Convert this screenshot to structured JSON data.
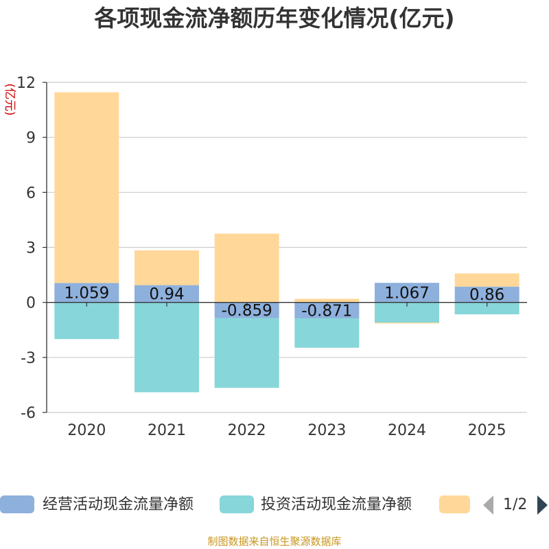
{
  "chart_data": {
    "type": "bar",
    "stacked": true,
    "title": "各项现金流净额历年变化情况(亿元)",
    "ylabel": "(亿元)",
    "categories": [
      "2020",
      "2021",
      "2022",
      "2023",
      "2024",
      "2025"
    ],
    "ylim": [
      -6,
      12
    ],
    "yticks": [
      -6,
      -3,
      0,
      3,
      6,
      9,
      12
    ],
    "ytick_labels": [
      "-6",
      "-3",
      "0",
      "3",
      "6",
      "9",
      "12"
    ],
    "series": [
      {
        "name": "经营活动现金流量净额",
        "color": "#8eb0dc",
        "values": [
          1.059,
          0.94,
          -0.859,
          -0.871,
          1.067,
          0.86
        ],
        "labels": [
          "1.059",
          "0.94",
          "-0.859",
          "-0.871",
          "1.067",
          "0.86"
        ]
      },
      {
        "name": "投资活动现金流量净额",
        "color": "#87d6d9",
        "values": [
          -2.0,
          -4.9,
          -3.8,
          -1.6,
          -1.1,
          -0.65
        ]
      },
      {
        "name": "",
        "color": "#ffd899",
        "values": [
          10.4,
          1.9,
          3.75,
          0.2,
          -0.05,
          0.72
        ]
      }
    ],
    "legend": {
      "position": "bottom",
      "page": "1/2"
    },
    "source": "制图数据来自恒生聚源数据库",
    "colors": {
      "title": "#333333",
      "axis": "#333333",
      "grid": "#cccccc",
      "unit": "#cc0000",
      "source": "#c8961e",
      "pager_disabled": "#aaaaaa",
      "pager_active": "#2f4554"
    }
  }
}
